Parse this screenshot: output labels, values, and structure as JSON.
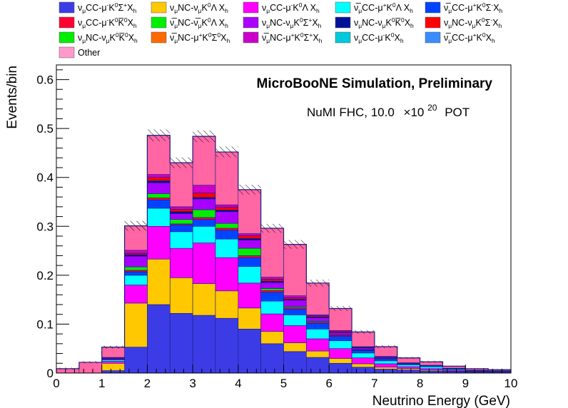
{
  "chart_data": {
    "type": "bar",
    "stacked": true,
    "xlabel": "Neutrino Energy (GeV)",
    "ylabel": "Events/bin",
    "xlim": [
      0,
      10
    ],
    "ylim": [
      0,
      0.63
    ],
    "xticks": [
      "0",
      "1",
      "2",
      "3",
      "4",
      "5",
      "6",
      "7",
      "8",
      "9",
      "10"
    ],
    "yticks": [
      "0",
      "0.1",
      "0.2",
      "0.3",
      "0.4",
      "0.5",
      "0.6"
    ],
    "ytick_values": [
      0,
      0.1,
      0.2,
      0.3,
      0.4,
      0.5,
      0.6
    ],
    "annotations": {
      "title": "MicroBooNE Simulation, Preliminary",
      "exposure_prefix": "NuMI FHC, 10.0",
      "times": "×10",
      "exponent": "20",
      "exposure_suffix": "POT"
    },
    "bin_edges": [
      0,
      0.5,
      1,
      1.5,
      2,
      2.5,
      3,
      3.5,
      4,
      4.5,
      5,
      5.5,
      6,
      6.5,
      7,
      7.5,
      8,
      8.5,
      9,
      9.5,
      10
    ],
    "series": [
      {
        "key": "s1",
        "color": "#3c3ce6",
        "values": [
          0,
          0,
          0.005,
          0.053,
          0.14,
          0.122,
          0.118,
          0.112,
          0.09,
          0.06,
          0.044,
          0.032,
          0.02,
          0.012,
          0.008,
          0.006,
          0.004,
          0.003,
          0.002,
          0.002
        ]
      },
      {
        "key": "s2",
        "color": "#ffc800",
        "values": [
          0,
          0,
          0.015,
          0.09,
          0.093,
          0.073,
          0.065,
          0.056,
          0.043,
          0.025,
          0.018,
          0.013,
          0.01,
          0.007,
          0.004,
          0.003,
          0.002,
          0.001,
          0.001,
          0
        ]
      },
      {
        "key": "s3",
        "color": "#ff00ff",
        "values": [
          0,
          0,
          0.004,
          0.037,
          0.067,
          0.06,
          0.083,
          0.068,
          0.051,
          0.036,
          0.035,
          0.025,
          0.02,
          0.012,
          0.007,
          0.004,
          0.003,
          0.002,
          0.001,
          0.001
        ]
      },
      {
        "key": "s4",
        "color": "#00ffff",
        "values": [
          0,
          0,
          0.003,
          0.02,
          0.037,
          0.034,
          0.034,
          0.038,
          0.034,
          0.026,
          0.022,
          0.02,
          0.016,
          0.01,
          0.006,
          0.004,
          0.004,
          0.002,
          0.001,
          0.001
        ]
      },
      {
        "key": "s5",
        "color": "#0044ff",
        "values": [
          0,
          0,
          0.001,
          0.007,
          0.017,
          0.014,
          0.014,
          0.018,
          0.018,
          0.018,
          0.012,
          0.012,
          0.009,
          0.005,
          0.004,
          0.002,
          0.002,
          0.001,
          0.001,
          0.001
        ]
      },
      {
        "key": "s6",
        "color": "#ff0033",
        "values": [
          0,
          0,
          0,
          0.003,
          0.004,
          0.002,
          0.004,
          0.004,
          0.004,
          0.004,
          0.003,
          0.002,
          0.002,
          0.001,
          0.001,
          0,
          0,
          0,
          0,
          0
        ]
      },
      {
        "key": "s7",
        "color": "#00ee00",
        "values": [
          0,
          0,
          0,
          0.007,
          0.009,
          0.009,
          0.016,
          0.01,
          0.015,
          0.004,
          0.002,
          0.002,
          0.001,
          0.001,
          0,
          0,
          0,
          0,
          0,
          0
        ]
      },
      {
        "key": "s8",
        "color": "#aa00ff",
        "values": [
          0,
          0,
          0.002,
          0.022,
          0.022,
          0.012,
          0.022,
          0.024,
          0.017,
          0.012,
          0.013,
          0.007,
          0.004,
          0.003,
          0.002,
          0.001,
          0.001,
          0.001,
          0,
          0
        ]
      },
      {
        "key": "s9",
        "color": "#001199",
        "values": [
          0,
          0,
          0.001,
          0.003,
          0.004,
          0.004,
          0.003,
          0.003,
          0.003,
          0.003,
          0.002,
          0.002,
          0.001,
          0.001,
          0.001,
          0,
          0,
          0,
          0,
          0
        ]
      },
      {
        "key": "s10",
        "color": "#ff0000",
        "values": [
          0,
          0,
          0,
          0.003,
          0.007,
          0.005,
          0.009,
          0.006,
          0.006,
          0.004,
          0.003,
          0.002,
          0.002,
          0.001,
          0,
          0,
          0,
          0,
          0,
          0
        ]
      },
      {
        "key": "s11",
        "color": "#cc00cc",
        "values": [
          0,
          0,
          0.001,
          0.006,
          0.006,
          0.005,
          0.016,
          0.005,
          0.004,
          0.004,
          0.004,
          0.002,
          0.002,
          0.001,
          0.001,
          0.001,
          0,
          0,
          0,
          0
        ]
      },
      {
        "key": "s12",
        "color": "#ff66a3",
        "values": [
          0.009,
          0.022,
          0.021,
          0.05,
          0.08,
          0.09,
          0.1,
          0.108,
          0.09,
          0.1,
          0.105,
          0.065,
          0.045,
          0.03,
          0.02,
          0.01,
          0.007,
          0.004,
          0.003,
          0.002
        ]
      }
    ],
    "uncertainty": [
      0.002,
      0.002,
      0.003,
      0.01,
      0.012,
      0.011,
      0.012,
      0.011,
      0.01,
      0.009,
      0.009,
      0.007,
      0.005,
      0.004,
      0.003,
      0.002,
      0.002,
      0.001,
      0.001,
      0.001
    ],
    "legend": [
      {
        "color": "#3c3ce6",
        "pre": "ν",
        "sub": "μ",
        "text": "CC-μ",
        "sup": "-",
        "text2": "K",
        "sup2": "0",
        "text3": "Σ",
        "sup3": "+",
        "text4": "X",
        "sub4": "h"
      },
      {
        "color": "#ffc800",
        "pre": "ν",
        "sub": "μ",
        "text": "NC-ν",
        "sub_b": "μ",
        "text2": "K",
        "sup2": "0",
        "text3": "Λ X",
        "sub4": "h"
      },
      {
        "color": "#ff00ff",
        "pre": "ν",
        "sub": "μ",
        "text": "CC-μ",
        "sup": "-",
        "text2": "K",
        "sup2": "0",
        "text3": "Λ X",
        "sub4": "h"
      },
      {
        "color": "#00ffff",
        "pre": "ν̅",
        "sub": "μ",
        "text": "CC-μ",
        "sup": "+",
        "text2": "K",
        "sup2": "0",
        "text3": "Λ X",
        "sub4": "h"
      },
      {
        "color": "#0044ff",
        "pre": "ν̅",
        "sub": "μ",
        "text": "CC-μ",
        "sup": "+",
        "text2": "K",
        "sup2": "0",
        "text3": "Σ",
        "sup3": "-",
        "text4": "X",
        "sub4": "h"
      },
      {
        "color": "#ff0033",
        "pre": "ν",
        "sub": "μ",
        "text": "CC-μ",
        "sup": "-",
        "text2": "K",
        "sup2": "0",
        "text3": "K̅",
        "sup3": "0",
        "text4": "X",
        "sub4": "h"
      },
      {
        "color": "#00ee00",
        "pre": "ν̅",
        "sub": "μ",
        "text": "NC-ν̅",
        "sub_b": "μ",
        "text2": "K",
        "sup2": "0",
        "text3": "Λ X",
        "sub4": "h"
      },
      {
        "color": "#aa00ff",
        "pre": "ν",
        "sub": "μ",
        "text": "NC-ν",
        "sub_b": "μ",
        "text2": "K",
        "sup2": "0",
        "text3": "Σ",
        "sup3": "+",
        "text4": "X",
        "sub4": "h"
      },
      {
        "color": "#001199",
        "pre": "ν",
        "sub": "μ",
        "text": "NC-ν",
        "sub_b": "μ",
        "text2": "K",
        "sup2": "0",
        "text3": "K̅",
        "sup3": "0",
        "text4": "X",
        "sub4": "h"
      },
      {
        "color": "#ff0000",
        "pre": "ν",
        "sub": "μ",
        "text": "NC-ν",
        "sub_b": "μ",
        "text2": "K",
        "sup2": "0",
        "text3": "Σ",
        "sup3": "-",
        "text4": "X",
        "sub4": "h"
      },
      {
        "color": "#00ee00",
        "pre": "ν",
        "sub": "μ",
        "text": "NC-ν",
        "sub_b": "μ",
        "text2": "K",
        "sup2": "0",
        "text3": "K̅",
        "sup3": "0",
        "text4": "X",
        "sub4": "h"
      },
      {
        "color": "#ff6a00",
        "pre": "ν̅",
        "sub": "μ",
        "text": "NC-μ",
        "sup": "+",
        "text2": "K",
        "sup2": "0",
        "text3": "Σ",
        "sup3": "0",
        "text4": "X",
        "sub4": "h"
      },
      {
        "color": "#cc00cc",
        "pre": "ν̅",
        "sub": "μ",
        "text": "NC-μ",
        "sup": "+",
        "text2": "K",
        "sup2": "0",
        "text3": "Σ",
        "sup3": "+",
        "text4": "X",
        "sub4": "h"
      },
      {
        "color": "#00c8dc",
        "pre": "ν",
        "sub": "μ",
        "text": "CC-μ",
        "sup": "-",
        "text2": "K",
        "sup2": "0",
        "text3": "X",
        "sub4": "h"
      },
      {
        "color": "#3a8cff",
        "pre": "ν̅",
        "sub": "μ",
        "text": "CC-μ",
        "sup": "+",
        "text2": "K",
        "sup2": "0",
        "text3": "X",
        "sub4": "h"
      },
      {
        "color": "#ff99cc",
        "plain": "Other"
      }
    ]
  }
}
